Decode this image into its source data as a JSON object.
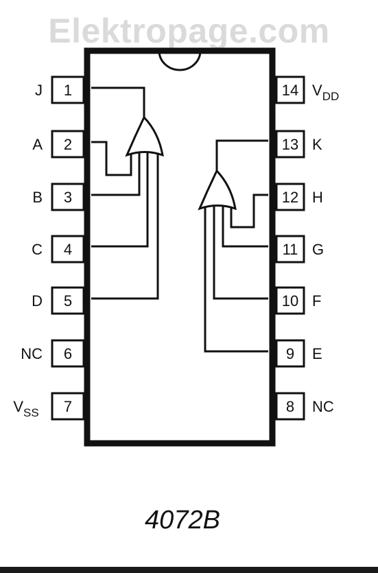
{
  "watermark": "Elektropage.com",
  "part_number": "4072B",
  "colors": {
    "ink": "#111111",
    "watermark": "#dadada",
    "background": "#ffffff"
  },
  "pins": {
    "left": [
      {
        "number": "1",
        "name": "J"
      },
      {
        "number": "2",
        "name": "A"
      },
      {
        "number": "3",
        "name": "B"
      },
      {
        "number": "4",
        "name": "C"
      },
      {
        "number": "5",
        "name": "D"
      },
      {
        "number": "6",
        "name": "NC"
      },
      {
        "number": "7",
        "name": "V",
        "subscript": "SS"
      }
    ],
    "right": [
      {
        "number": "14",
        "name": "V",
        "subscript": "DD"
      },
      {
        "number": "13",
        "name": "K"
      },
      {
        "number": "12",
        "name": "H"
      },
      {
        "number": "11",
        "name": "G"
      },
      {
        "number": "10",
        "name": "F"
      },
      {
        "number": "9",
        "name": "E"
      },
      {
        "number": "8",
        "name": "NC"
      }
    ]
  },
  "gates": [
    {
      "type": "OR",
      "inputs": [
        "2",
        "3",
        "4",
        "5"
      ],
      "output": "1"
    },
    {
      "type": "OR",
      "inputs": [
        "12",
        "11",
        "10",
        "9"
      ],
      "output": "13"
    }
  ]
}
